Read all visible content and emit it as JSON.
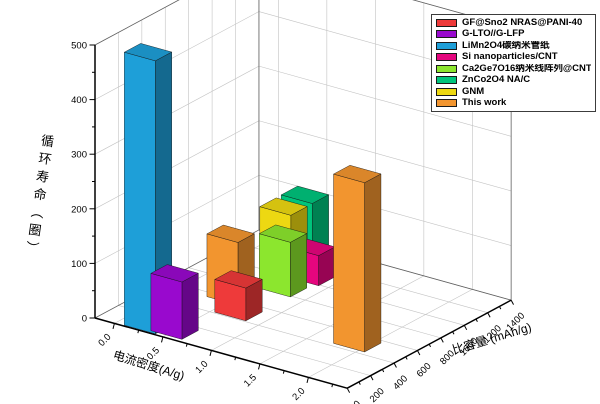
{
  "page": {
    "background": "#ffffff"
  },
  "chart_data": {
    "type": "bar",
    "variant": "3d-bars",
    "title": "",
    "grid": true,
    "legend_position": "top-right",
    "axes": {
      "z": {
        "title": "循环寿命（圈）",
        "min": 0,
        "max": 500,
        "ticks": [
          "0",
          "100",
          "200",
          "300",
          "400",
          "500"
        ]
      },
      "x": {
        "title": "电流密度(A/g)",
        "min": 0,
        "max": 2.4,
        "ticks": [
          "0.0",
          "0.5",
          "1.0",
          "1.5",
          "2.0"
        ]
      },
      "depth": {
        "title": "比容量 (mAh/g)",
        "min": 0,
        "max": 1400,
        "ticks": [
          "0",
          "200",
          "400",
          "600",
          "800",
          "1000",
          "1200",
          "1400"
        ]
      }
    },
    "series": [
      {
        "name": "GF@Sno2 NRAS@PANI-40",
        "color": "#EE3A3A",
        "points": [
          {
            "current_density": 0.7,
            "capacity": 480,
            "cycle_life": 60
          }
        ]
      },
      {
        "name": "G-LTO//G-LFP",
        "color": "#9909CE",
        "points": [
          {
            "current_density": 0.5,
            "capacity": 100,
            "cycle_life": 105
          }
        ]
      },
      {
        "name": "LiMn2O4碳纳米管纸",
        "color": "#1E9FD8",
        "points": [
          {
            "current_density": 0.25,
            "capacity": 80,
            "cycle_life": 500
          }
        ]
      },
      {
        "name": "Si nanoparticles/CNT",
        "color": "#E5067E",
        "points": [
          {
            "current_density": 0.75,
            "capacity": 1060,
            "cycle_life": 55
          }
        ]
      },
      {
        "name": "Ca2Ge7O16纳米线阵列@CNT",
        "color": "#8CE62E",
        "points": [
          {
            "current_density": 0.7,
            "capacity": 860,
            "cycle_life": 100
          }
        ]
      },
      {
        "name": "ZnCo2O4 NA/C",
        "color": "#00C47C",
        "points": [
          {
            "current_density": 0.6,
            "capacity": 1130,
            "cycle_life": 135
          }
        ]
      },
      {
        "name": "GNM",
        "color": "#EDD812",
        "points": [
          {
            "current_density": 0.5,
            "capacity": 1030,
            "cycle_life": 120
          }
        ]
      },
      {
        "name": "This work",
        "color": "#F2952F",
        "points": [
          {
            "current_density": 0.45,
            "capacity": 620,
            "cycle_life": 115
          },
          {
            "current_density": 1.9,
            "capacity": 500,
            "cycle_life": 310
          }
        ]
      }
    ]
  }
}
